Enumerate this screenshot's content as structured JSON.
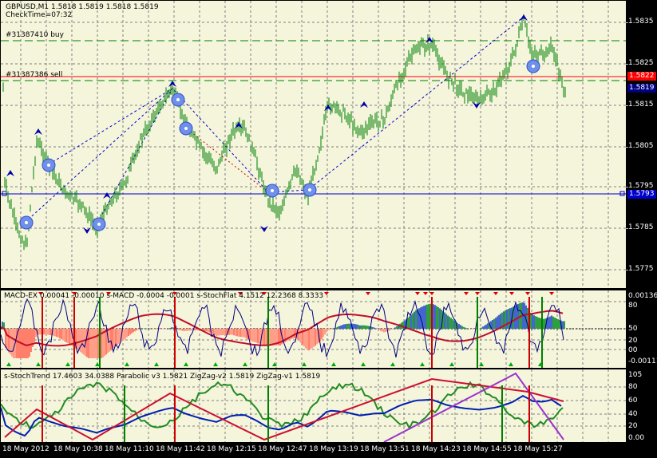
{
  "chart": {
    "symbol_line": "GBPUSD,M1  1.5818 1.5819 1.5818 1.5819",
    "check_time": "CheckTime=07:32",
    "buy_label": "#31387410 buy",
    "sell_label": "#31387386 sell",
    "price_axis": [
      "1.5835",
      "1.5825",
      "1.5815",
      "1.5805",
      "1.5795",
      "1.5785",
      "1.5775"
    ],
    "sell_price": "1.5822",
    "bid_price": "1.5819",
    "line_price": "1.5793",
    "colors": {
      "background": "#f5f5dc",
      "grid": "#808080",
      "buy_line": "#008000",
      "sell_line": "#ff0000",
      "bid_line": "#000080",
      "h_line": "#0000cc"
    }
  },
  "macd_pane": {
    "header": "MACD-EX 0.00041 -0.00010 s-MACD -0.0004 -0.0001 s-StochFlat 4.1512 12.2368 8.3333",
    "axis": [
      "0.00136",
      "80",
      "50",
      "20",
      "00",
      "-0.00111"
    ]
  },
  "trend_pane": {
    "header": "s-StochTrend 17.4603 34.0388 Parabolic v3 1.5821 ZigZag-v2 1.5819 ZigZag-v1 1.5819",
    "axis": [
      "105",
      "80",
      "60",
      "40",
      "20",
      "0.00"
    ]
  },
  "time_axis": [
    "18 May 2012",
    "18 May 10:38",
    "18 May 11:10",
    "18 May 11:42",
    "18 May 12:15",
    "18 May 12:47",
    "18 May 13:19",
    "18 May 13:51",
    "18 May 14:23",
    "18 May 14:55",
    "18 May 15:27"
  ]
}
